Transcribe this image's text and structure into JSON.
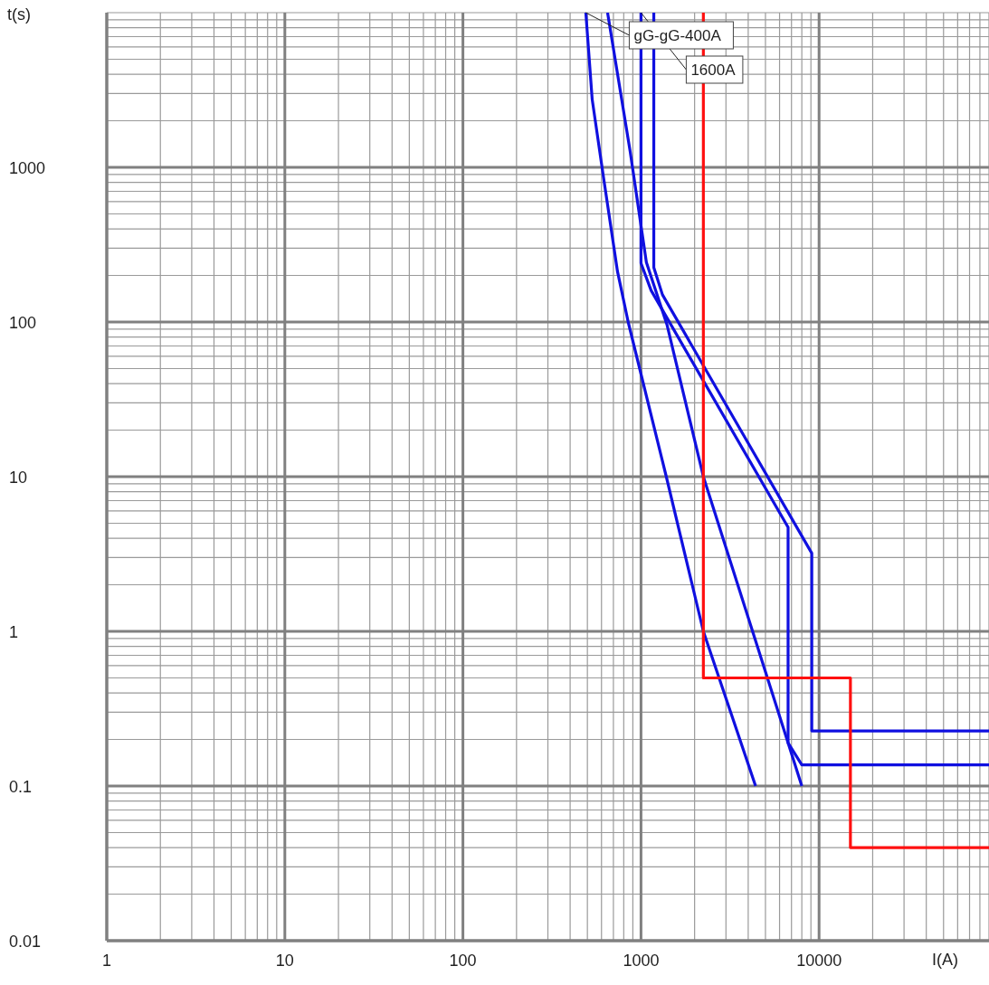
{
  "chart_data": {
    "type": "line",
    "xlabel": "I(A)",
    "ylabel": "t(s)",
    "log": "xy",
    "grid": true,
    "marker": "none",
    "line_style": "solid",
    "xlim": [
      1,
      90000
    ],
    "ylim": [
      0.01,
      10000
    ],
    "xticks": [
      1,
      {
        "value": 2,
        "label": null
      },
      {
        "value": 3,
        "label": null
      },
      {
        "value": 4,
        "label": null
      },
      {
        "value": 5,
        "label": null
      },
      {
        "value": 6,
        "label": null
      },
      {
        "value": 7,
        "label": null
      },
      {
        "value": 8,
        "label": null
      },
      {
        "value": 9,
        "label": null
      },
      10,
      {
        "value": 20,
        "label": null
      },
      {
        "value": 30,
        "label": null
      },
      {
        "value": 40,
        "label": null
      },
      {
        "value": 50,
        "label": null
      },
      {
        "value": 60,
        "label": null
      },
      {
        "value": 70,
        "label": null
      },
      {
        "value": 80,
        "label": null
      },
      {
        "value": 90,
        "label": null
      },
      100,
      {
        "value": 200,
        "label": null
      },
      {
        "value": 300,
        "label": null
      },
      {
        "value": 400,
        "label": null
      },
      {
        "value": 500,
        "label": null
      },
      {
        "value": 600,
        "label": null
      },
      {
        "value": 700,
        "label": null
      },
      {
        "value": 800,
        "label": null
      },
      {
        "value": 900,
        "label": null
      },
      1000,
      {
        "value": 2000,
        "label": null
      },
      {
        "value": 3000,
        "label": null
      },
      {
        "value": 4000,
        "label": null
      },
      {
        "value": 5000,
        "label": null
      },
      {
        "value": 6000,
        "label": null
      },
      {
        "value": 7000,
        "label": null
      },
      {
        "value": 8000,
        "label": null
      },
      {
        "value": 9000,
        "label": null
      },
      10000,
      {
        "value": 20000,
        "label": null
      },
      {
        "value": 30000,
        "label": null
      },
      {
        "value": 40000,
        "label": null
      },
      {
        "value": 50000,
        "label": null
      },
      {
        "value": 60000,
        "label": null
      },
      {
        "value": 70000,
        "label": null
      },
      {
        "value": 80000,
        "label": null
      },
      {
        "value": 90000,
        "label": null
      }
    ],
    "yticks": [
      0.01,
      {
        "value": 0.02,
        "label": null
      },
      {
        "value": 0.03,
        "label": null
      },
      {
        "value": 0.04,
        "label": null
      },
      {
        "value": 0.05,
        "label": null
      },
      {
        "value": 0.06,
        "label": null
      },
      {
        "value": 0.07,
        "label": null
      },
      {
        "value": 0.08,
        "label": null
      },
      {
        "value": 0.09,
        "label": null
      },
      0.1,
      {
        "value": 0.2,
        "label": null
      },
      {
        "value": 0.3,
        "label": null
      },
      {
        "value": 0.4,
        "label": null
      },
      {
        "value": 0.5,
        "label": null
      },
      {
        "value": 0.6,
        "label": null
      },
      {
        "value": 0.7,
        "label": null
      },
      {
        "value": 0.8,
        "label": null
      },
      {
        "value": 0.9,
        "label": null
      },
      1,
      {
        "value": 2,
        "label": null
      },
      {
        "value": 3,
        "label": null
      },
      {
        "value": 4,
        "label": null
      },
      {
        "value": 5,
        "label": null
      },
      {
        "value": 6,
        "label": null
      },
      {
        "value": 7,
        "label": null
      },
      {
        "value": 8,
        "label": null
      },
      {
        "value": 9,
        "label": null
      },
      10,
      {
        "value": 20,
        "label": null
      },
      {
        "value": 30,
        "label": null
      },
      {
        "value": 40,
        "label": null
      },
      {
        "value": 50,
        "label": null
      },
      {
        "value": 60,
        "label": null
      },
      {
        "value": 70,
        "label": null
      },
      {
        "value": 80,
        "label": null
      },
      {
        "value": 90,
        "label": null
      },
      100,
      {
        "value": 200,
        "label": null
      },
      {
        "value": 300,
        "label": null
      },
      {
        "value": 400,
        "label": null
      },
      {
        "value": 500,
        "label": null
      },
      {
        "value": 600,
        "label": null
      },
      {
        "value": 700,
        "label": null
      },
      {
        "value": 800,
        "label": null
      },
      {
        "value": 900,
        "label": null
      },
      1000,
      {
        "value": 2000,
        "label": null
      },
      {
        "value": 3000,
        "label": null
      },
      {
        "value": 4000,
        "label": null
      },
      {
        "value": 5000,
        "label": null
      },
      {
        "value": 6000,
        "label": null
      },
      {
        "value": 7000,
        "label": null
      },
      {
        "value": 8000,
        "label": null
      },
      {
        "value": 9000,
        "label": null
      },
      {
        "value": 10000,
        "label": null
      }
    ],
    "series": [
      {
        "color": "#1010e0",
        "x": [
          490,
          532,
          620,
          738,
          849,
          1387,
          2240,
          4400
        ],
        "values": [
          10000,
          2750,
          817,
          212,
          99,
          10,
          1,
          0.1
        ]
      },
      {
        "color": "#1010e0",
        "x": [
          649,
          869,
          1072,
          1403,
          2240,
          8000
        ],
        "values": [
          10000,
          1270,
          243,
          95,
          10,
          0.1
        ]
      },
      {
        "color": "#1010e0",
        "x": [
          1000,
          1000,
          1140,
          6700,
          6700,
          8000,
          90000
        ],
        "values": [
          10000,
          240,
          160,
          4.7,
          0.19,
          0.137,
          0.137
        ]
      },
      {
        "color": "#1010e0",
        "x": [
          1180,
          1180,
          1320,
          9100,
          9100,
          90000
        ],
        "values": [
          10000,
          225,
          150,
          3.2,
          0.227,
          0.227
        ]
      },
      {
        "color": "#ff1010",
        "x": [
          2240,
          2240,
          15000,
          15000,
          90000
        ],
        "values": [
          10000,
          0.5,
          0.5,
          0.04,
          0.04
        ]
      }
    ],
    "annotations": [
      {
        "text": "gG-gG-400A",
        "x": 490,
        "y": 10000
      },
      {
        "text": "1600A",
        "x": 1000,
        "y": 10000
      }
    ]
  }
}
